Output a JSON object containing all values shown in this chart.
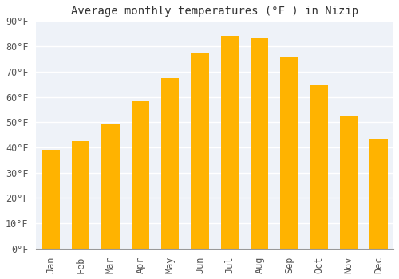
{
  "title": "Average monthly temperatures (°F ) in Nizip",
  "months": [
    "Jan",
    "Feb",
    "Mar",
    "Apr",
    "May",
    "Jun",
    "Jul",
    "Aug",
    "Sep",
    "Oct",
    "Nov",
    "Dec"
  ],
  "values": [
    39.2,
    42.4,
    49.3,
    58.3,
    67.3,
    77.2,
    84.2,
    83.3,
    75.7,
    64.6,
    52.2,
    43.3
  ],
  "bar_color_top": "#FFB300",
  "bar_color_bottom": "#FFCC55",
  "bar_edge_color": "none",
  "background_color": "#FFFFFF",
  "plot_bg_color": "#EEF2F8",
  "grid_color": "#FFFFFF",
  "title_fontsize": 10,
  "tick_fontsize": 8.5,
  "ylim": [
    0,
    90
  ],
  "yticks": [
    0,
    10,
    20,
    30,
    40,
    50,
    60,
    70,
    80,
    90
  ]
}
